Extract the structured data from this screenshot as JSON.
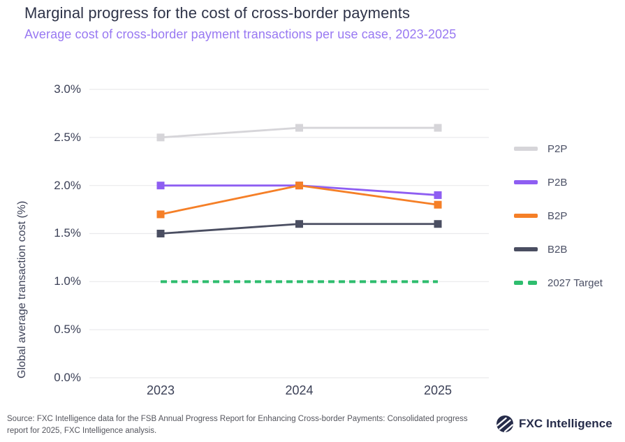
{
  "header": {
    "title": "Marginal progress for the cost of cross-border payments",
    "subtitle": "Average cost of cross-border payment transactions per use case, 2023-2025"
  },
  "chart_data": {
    "type": "line",
    "categories": [
      "2023",
      "2024",
      "2025"
    ],
    "series": [
      {
        "name": "P2P",
        "values": [
          2.5,
          2.6,
          2.6
        ],
        "color": "#d6d5d9",
        "dashed": false
      },
      {
        "name": "P2B",
        "values": [
          2.0,
          2.0,
          1.9
        ],
        "color": "#8e5ef2",
        "dashed": false
      },
      {
        "name": "B2P",
        "values": [
          1.7,
          2.0,
          1.8
        ],
        "color": "#f57f27",
        "dashed": false
      },
      {
        "name": "B2B",
        "values": [
          1.5,
          1.6,
          1.6
        ],
        "color": "#4a4e61",
        "dashed": false
      },
      {
        "name": "2027 Target",
        "values": [
          1.0,
          1.0,
          1.0
        ],
        "color": "#2ebd6e",
        "dashed": true
      }
    ],
    "ylabel": "Global average transaction cost (%)",
    "yticks": [
      "3.0%",
      "2.5%",
      "2.0%",
      "1.5%",
      "1.0%",
      "0.5%",
      "0.0%"
    ],
    "ytick_values": [
      3.0,
      2.5,
      2.0,
      1.5,
      1.0,
      0.5,
      0.0
    ],
    "ylim": [
      0,
      3.0
    ],
    "grid": true,
    "legend_position": "right",
    "title": "Marginal progress for the cost of cross-border payments",
    "subtitle": "Average cost of cross-border payment transactions per use case, 2023-2025"
  },
  "footer": {
    "source": "Source: FXC Intelligence data for the FSB Annual Progress Report for Enhancing Cross-border Payments: Consolidated progress report for 2025, FXC Intelligence analysis.",
    "logo_text": "FXC Intelligence"
  },
  "colors": {
    "title": "#2e3348",
    "subtitle": "#9878f2",
    "axis_text": "#3c4157",
    "grid": "#e9e9ec",
    "source_text": "#54555d",
    "logo": "#262c4a"
  }
}
